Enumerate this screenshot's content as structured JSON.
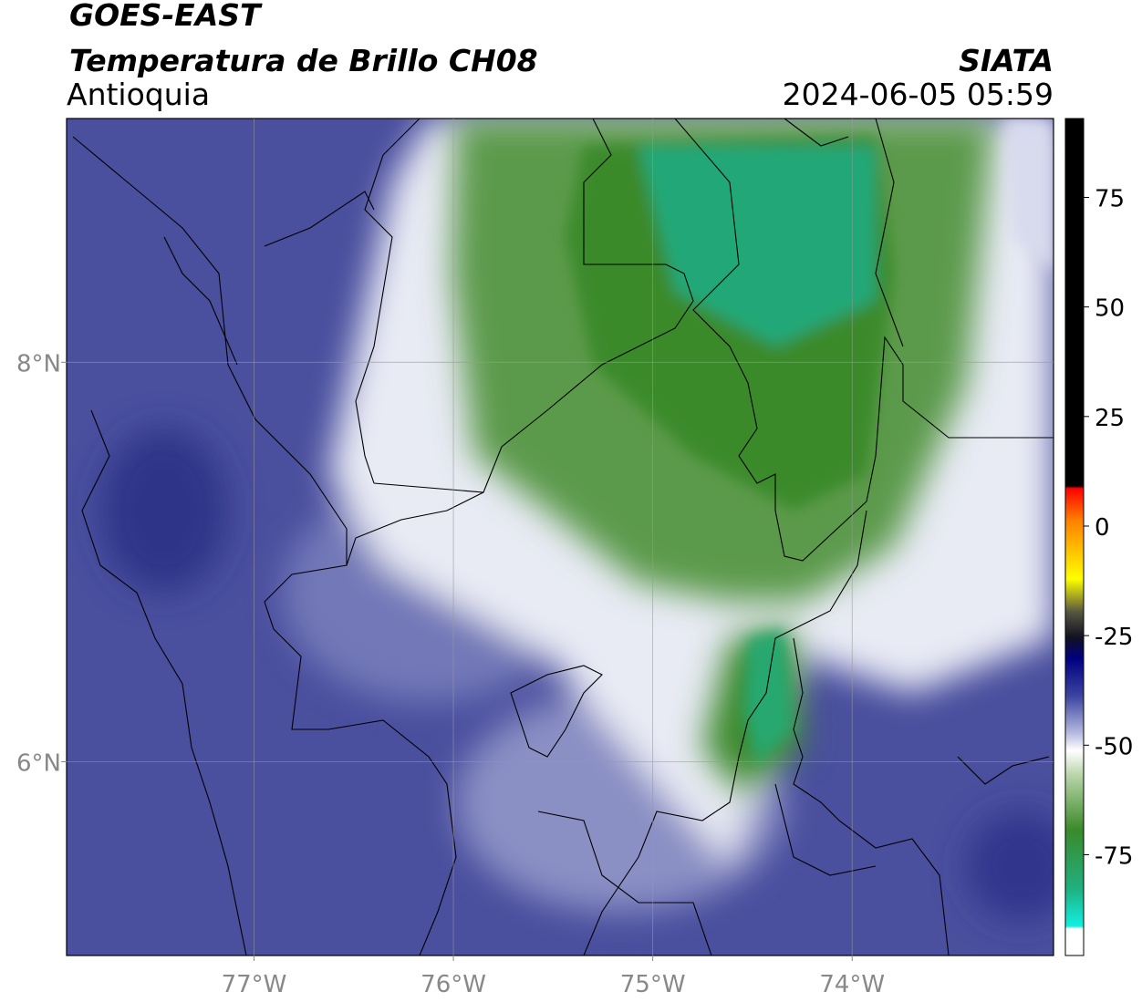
{
  "header": {
    "satellite": "GOES-EAST",
    "product": "Temperatura de Brillo CH08",
    "region": "Antioquia",
    "source": "SIATA",
    "datetime": "2024-06-05 05:59"
  },
  "map": {
    "xlim": [
      -77.94,
      -72.99
    ],
    "ylim": [
      5.03,
      9.22
    ],
    "xticks": [
      {
        "value": -77,
        "label": "77°W"
      },
      {
        "value": -76,
        "label": "76°W"
      },
      {
        "value": -75,
        "label": "75°W"
      },
      {
        "value": -74,
        "label": "74°W"
      }
    ],
    "yticks": [
      {
        "value": 8,
        "label": "8°N"
      },
      {
        "value": 6,
        "label": "6°N"
      }
    ],
    "grid": true
  },
  "colorbar": {
    "lim": [
      -98,
      93
    ],
    "ticks": [
      75,
      50,
      25,
      0,
      -25,
      -50,
      -75
    ]
  }
}
